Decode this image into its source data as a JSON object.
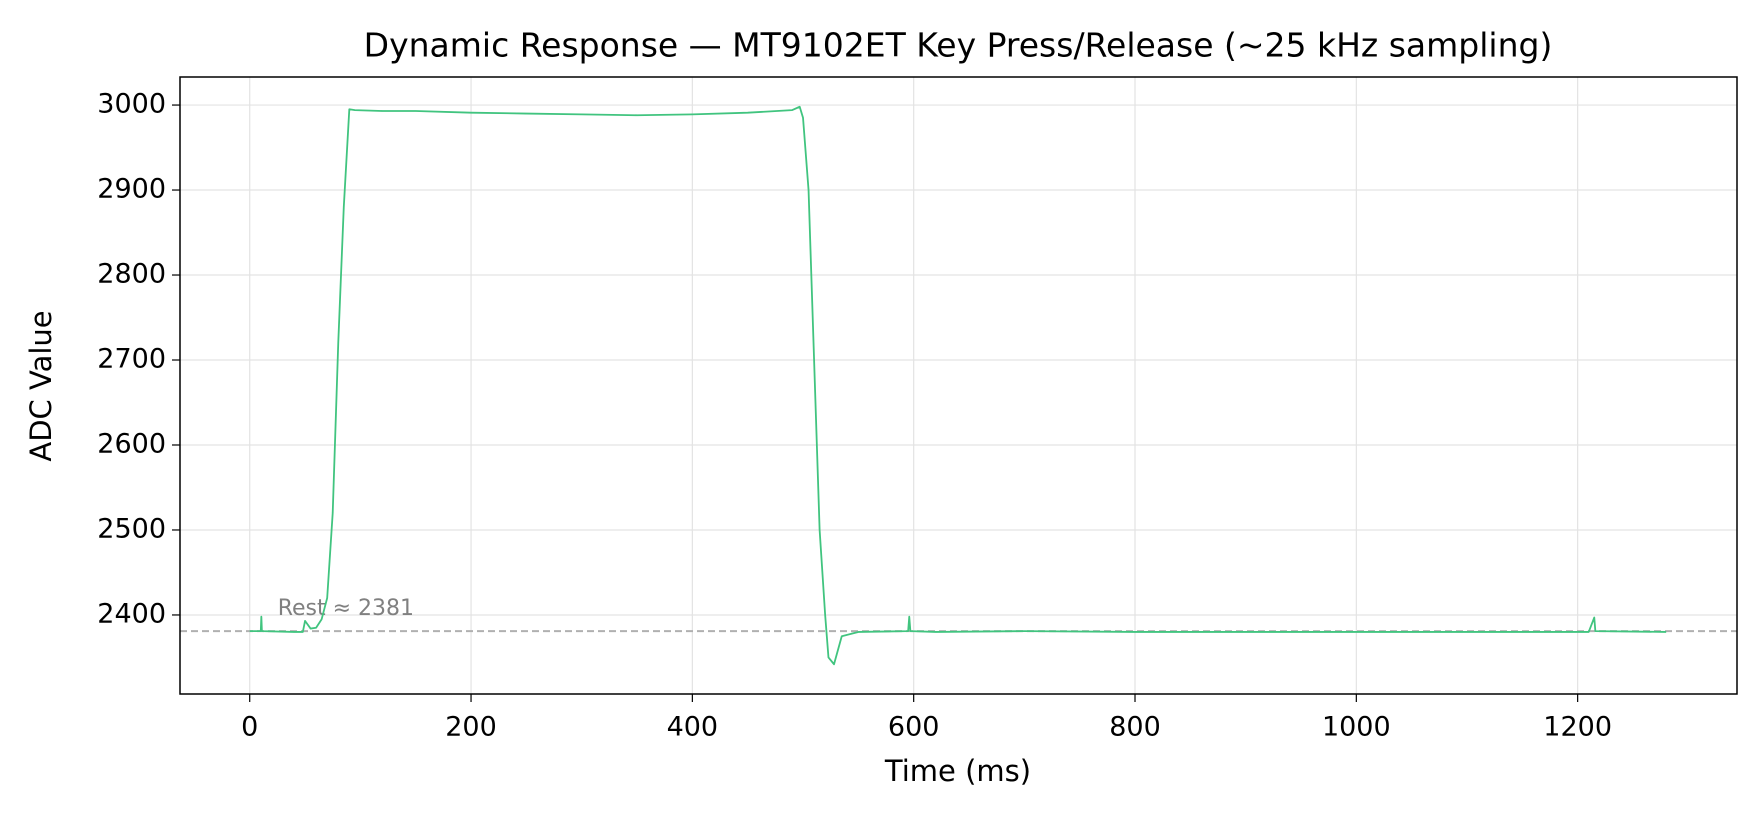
{
  "chart_data": {
    "type": "line",
    "title": "Dynamic Response — MT9102ET Key Press/Release (~25 kHz sampling)",
    "x_label": "Time (ms)",
    "y_label": "ADC Value",
    "x": [
      0,
      10,
      10.5,
      11,
      40,
      48,
      50,
      55,
      60,
      65,
      70,
      75,
      80,
      85,
      90,
      95,
      120,
      150,
      200,
      250,
      300,
      350,
      400,
      450,
      490,
      497,
      500,
      505,
      510,
      515,
      520,
      523,
      528,
      535,
      550,
      595,
      596,
      597,
      620,
      700,
      800,
      900,
      1000,
      1100,
      1210,
      1215,
      1216,
      1280
    ],
    "series": [
      {
        "name": "ADC",
        "color": "#41c47f",
        "values": [
          2381,
          2381,
          2398,
          2381,
          2380,
          2380,
          2393,
          2384,
          2385,
          2395,
          2420,
          2520,
          2720,
          2880,
          2995,
          2994,
          2993,
          2993,
          2991,
          2990,
          2989,
          2988,
          2989,
          2991,
          2994,
          2998,
          2985,
          2900,
          2700,
          2500,
          2400,
          2350,
          2342,
          2375,
          2380,
          2381,
          2398,
          2381,
          2380,
          2381,
          2380,
          2380,
          2380,
          2380,
          2380,
          2397,
          2381,
          2380
        ]
      }
    ],
    "reference_line": {
      "value": 2381,
      "color": "#b0b0b0"
    },
    "annotation": "Rest ≈ 2381",
    "xlim": [
      -63,
      1344
    ],
    "ylim": [
      2307,
      3033
    ],
    "xticks": [
      0,
      200,
      400,
      600,
      800,
      1000,
      1200
    ],
    "yticks": [
      2400,
      2500,
      2600,
      2700,
      2800,
      2900,
      3000
    ],
    "grid": true
  }
}
